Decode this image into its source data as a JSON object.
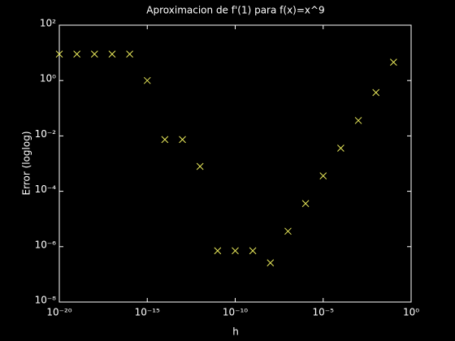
{
  "chart_data": {
    "type": "scatter",
    "title": "Aproximacion de f'(1) para f(x)=x^9",
    "x_label": "h",
    "y_label": "Error (loglog)",
    "x": [
      1e-20,
      1e-19,
      1e-18,
      1e-17,
      1e-16,
      1e-15,
      1e-14,
      1e-13,
      1e-12,
      1e-11,
      1e-10,
      1e-09,
      1e-08,
      1e-07,
      1e-06,
      1e-05,
      0.0001,
      0.001,
      0.01,
      0.1
    ],
    "series": [
      {
        "name": "error",
        "color": "#e8e85a",
        "marker": "x",
        "values": [
          9,
          9,
          9,
          9,
          9,
          1,
          0.0074,
          0.0074,
          0.00079,
          7.1e-07,
          7.1e-07,
          7.1e-07,
          2.6e-07,
          3.6e-06,
          3.6e-05,
          0.00036,
          0.0036,
          0.036,
          0.369,
          4.58
        ]
      }
    ],
    "x_scale": "log",
    "y_scale": "log",
    "xlim": [
      1e-20,
      1
    ],
    "ylim": [
      1e-08,
      100
    ],
    "xticks": [
      {
        "value": 1e-20,
        "label": "10⁻²⁰"
      },
      {
        "value": 1e-15,
        "label": "10⁻¹⁵"
      },
      {
        "value": 1e-10,
        "label": "10⁻¹⁰"
      },
      {
        "value": 1e-05,
        "label": "10⁻⁵"
      },
      {
        "value": 1,
        "label": "10⁰"
      }
    ],
    "yticks": [
      {
        "value": 1e-08,
        "label": "10⁻⁸"
      },
      {
        "value": 1e-06,
        "label": "10⁻⁶"
      },
      {
        "value": 0.0001,
        "label": "10⁻⁴"
      },
      {
        "value": 0.01,
        "label": "10⁻²"
      },
      {
        "value": 1,
        "label": "10⁰"
      },
      {
        "value": 100,
        "label": "10²"
      }
    ],
    "grid": false,
    "background": "#000000",
    "axis_color": "#ffffff"
  }
}
